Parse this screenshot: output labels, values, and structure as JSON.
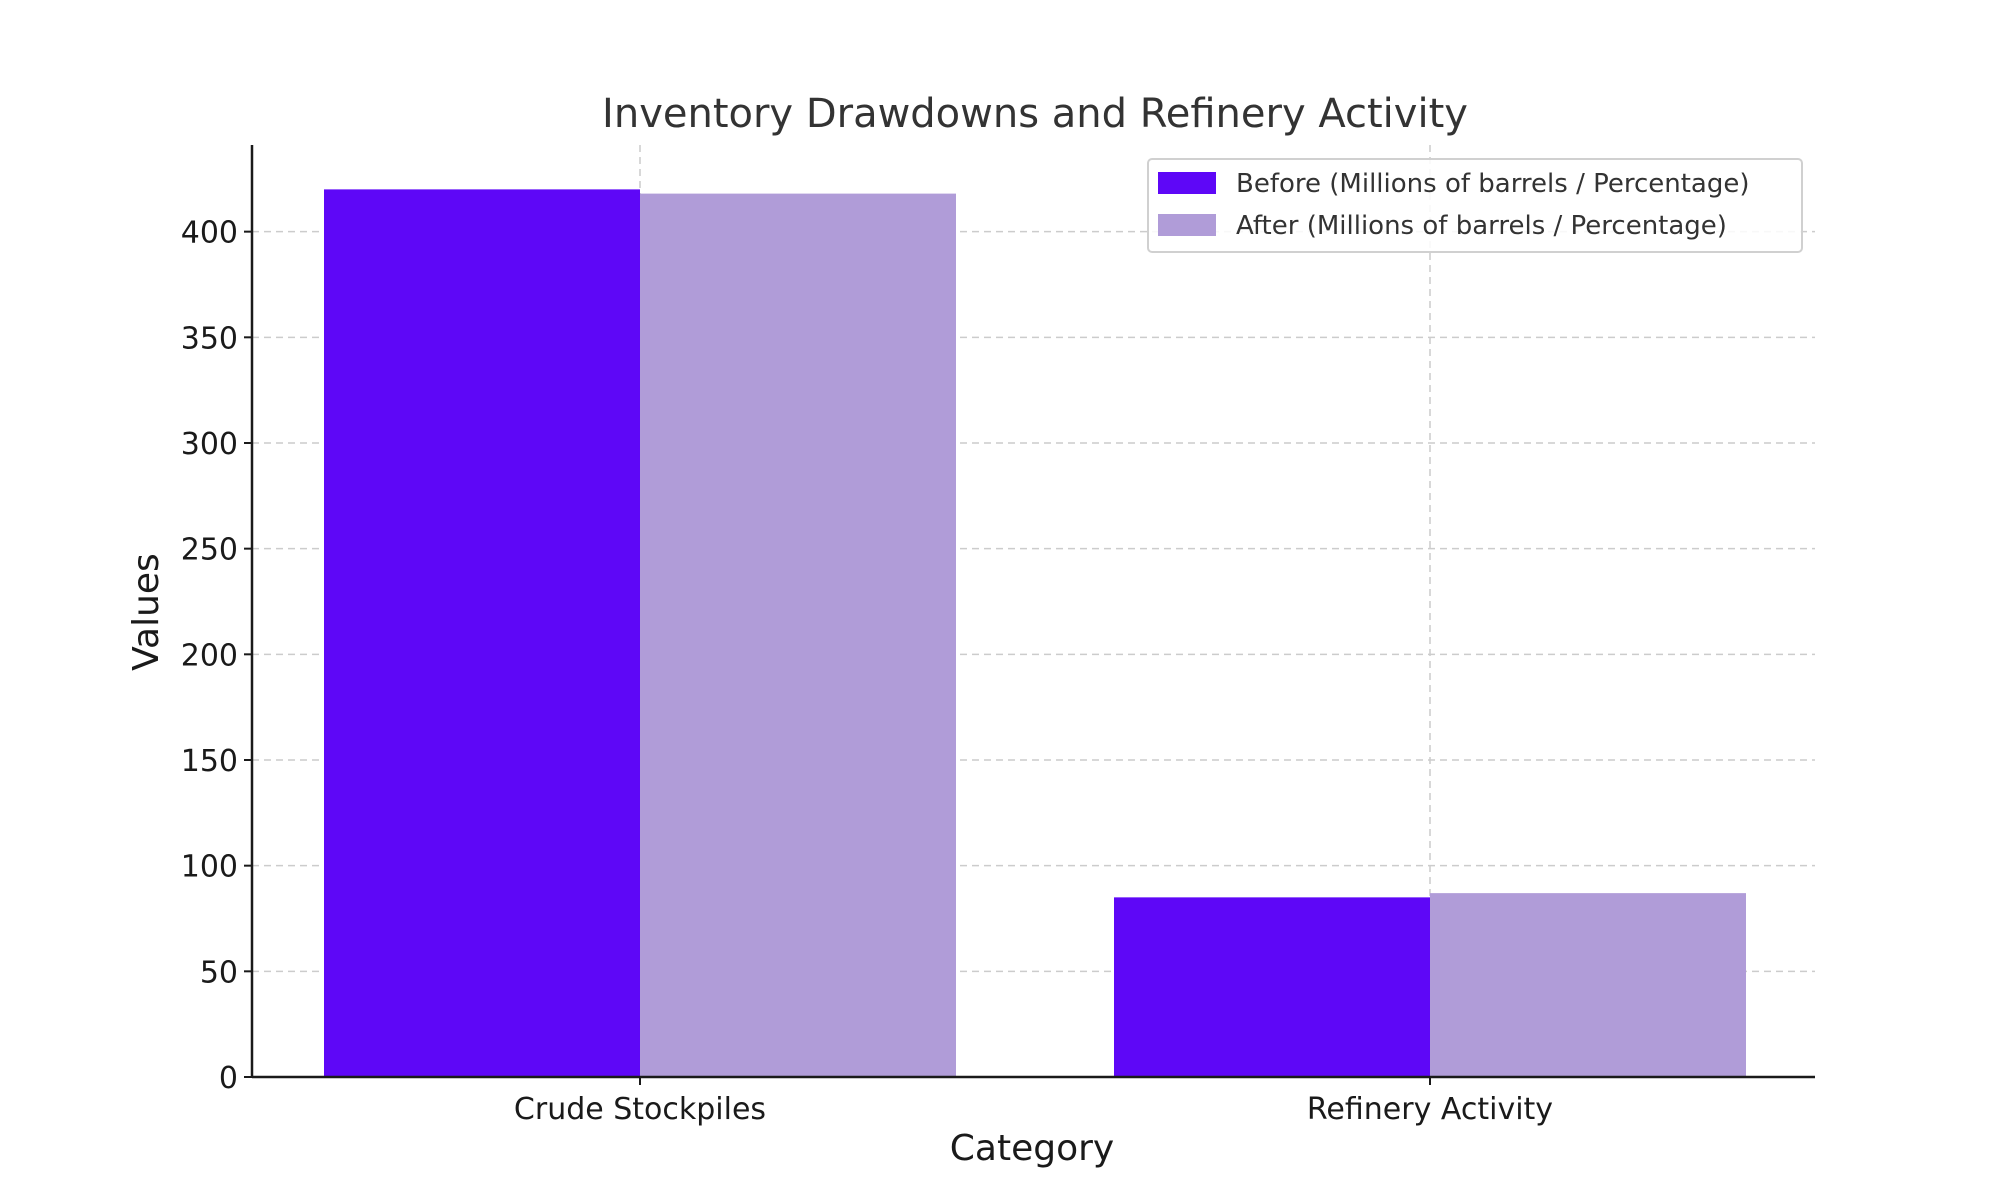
{
  "chart_data": {
    "type": "bar",
    "title": "Inventory Drawdowns and Refinery Activity",
    "xlabel": "Category",
    "ylabel": "Values",
    "categories": [
      "Crude Stockpiles",
      "Refinery Activity"
    ],
    "series": [
      {
        "name": "Before (Millions of barrels / Percentage)",
        "values": [
          420,
          85
        ],
        "color": "#5e07f7"
      },
      {
        "name": "After (Millions of barrels / Percentage)",
        "values": [
          418,
          87
        ],
        "color": "#b09cd8"
      }
    ],
    "ylim": [
      0,
      441
    ],
    "yticks": [
      0,
      50,
      100,
      150,
      200,
      250,
      300,
      350,
      400
    ],
    "grid": true,
    "legend_position": "top-right"
  }
}
